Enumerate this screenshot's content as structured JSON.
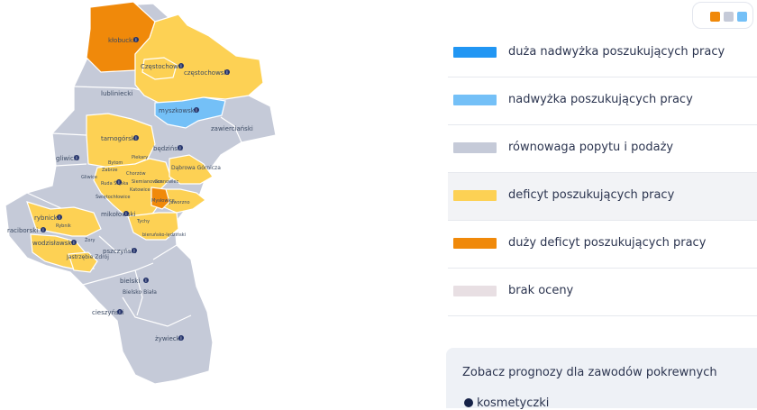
{
  "palette": {
    "very_high_surplus": "#2196f3",
    "surplus": "#74c0f7",
    "balance": "#c5cad8",
    "deficit": "#fdd154",
    "large_deficit": "#f0890a",
    "no_rating": "#e8dfe3"
  },
  "toggle": {
    "colors": [
      "#f0890a",
      "#c5cad8",
      "#74c0f7"
    ]
  },
  "legend": [
    {
      "label": "duża nadwyżka poszukujących pracy",
      "color": "#2196f3"
    },
    {
      "label": "nadwyżka poszukujących pracy",
      "color": "#74c0f7"
    },
    {
      "label": "równowaga popytu i podaży",
      "color": "#c5cad8"
    },
    {
      "label": "deficyt poszukujących pracy",
      "color": "#fdd154"
    },
    {
      "label": "duży deficyt poszukujących pracy",
      "color": "#f0890a"
    },
    {
      "label": "brak oceny",
      "color": "#e8dfe3"
    }
  ],
  "map": {
    "regions": {
      "klobucki": "kłobucki",
      "czestochowa": "Częstochowa",
      "czestochowski": "częstochowski",
      "lubliniecki": "lubliniecki",
      "myszkowski": "myszkowski",
      "zawiercianski": "zawierciański",
      "tarnogorski": "tarnogórski",
      "bedzinski": "będziński",
      "gliwicki": "gliwicki",
      "dabrowa": "Dąbrowa Górnicza",
      "raciborski": "raciborski",
      "rybnicki": "rybnicki",
      "wodzislawski": "wodzisławski",
      "mikolowski": "mikołowski",
      "jastrzebie": "Jastrzębie Zdrój",
      "pszczynski": "pszczyński",
      "bielski": "bielski",
      "bielsko": "Bielsko Biała",
      "cieszynski": "cieszyński",
      "zywiecki": "żywiecki",
      "bytom": "Bytom",
      "piekary": "Piekary",
      "zabrze": "Zabrze",
      "chorzow": "Chorzów",
      "gliwice": "Gliwice",
      "siemianowice": "Siemianowice",
      "sosnowiec": "Sosnowiec",
      "katowice": "Katowice",
      "ruda": "Ruda Śląska",
      "swietochlowice": "Świętochłowice",
      "jaworzno": "Jaworzno",
      "myslowice": "Mysłowice",
      "tychy": "Tychy",
      "bierun": "bieruńsko-lędziński",
      "zory": "Żory",
      "rybnik": "Rybnik"
    }
  },
  "related": {
    "title": "Zobacz prognozy dla zawodów pokrewnych",
    "items": [
      "kosmetyczki"
    ]
  }
}
